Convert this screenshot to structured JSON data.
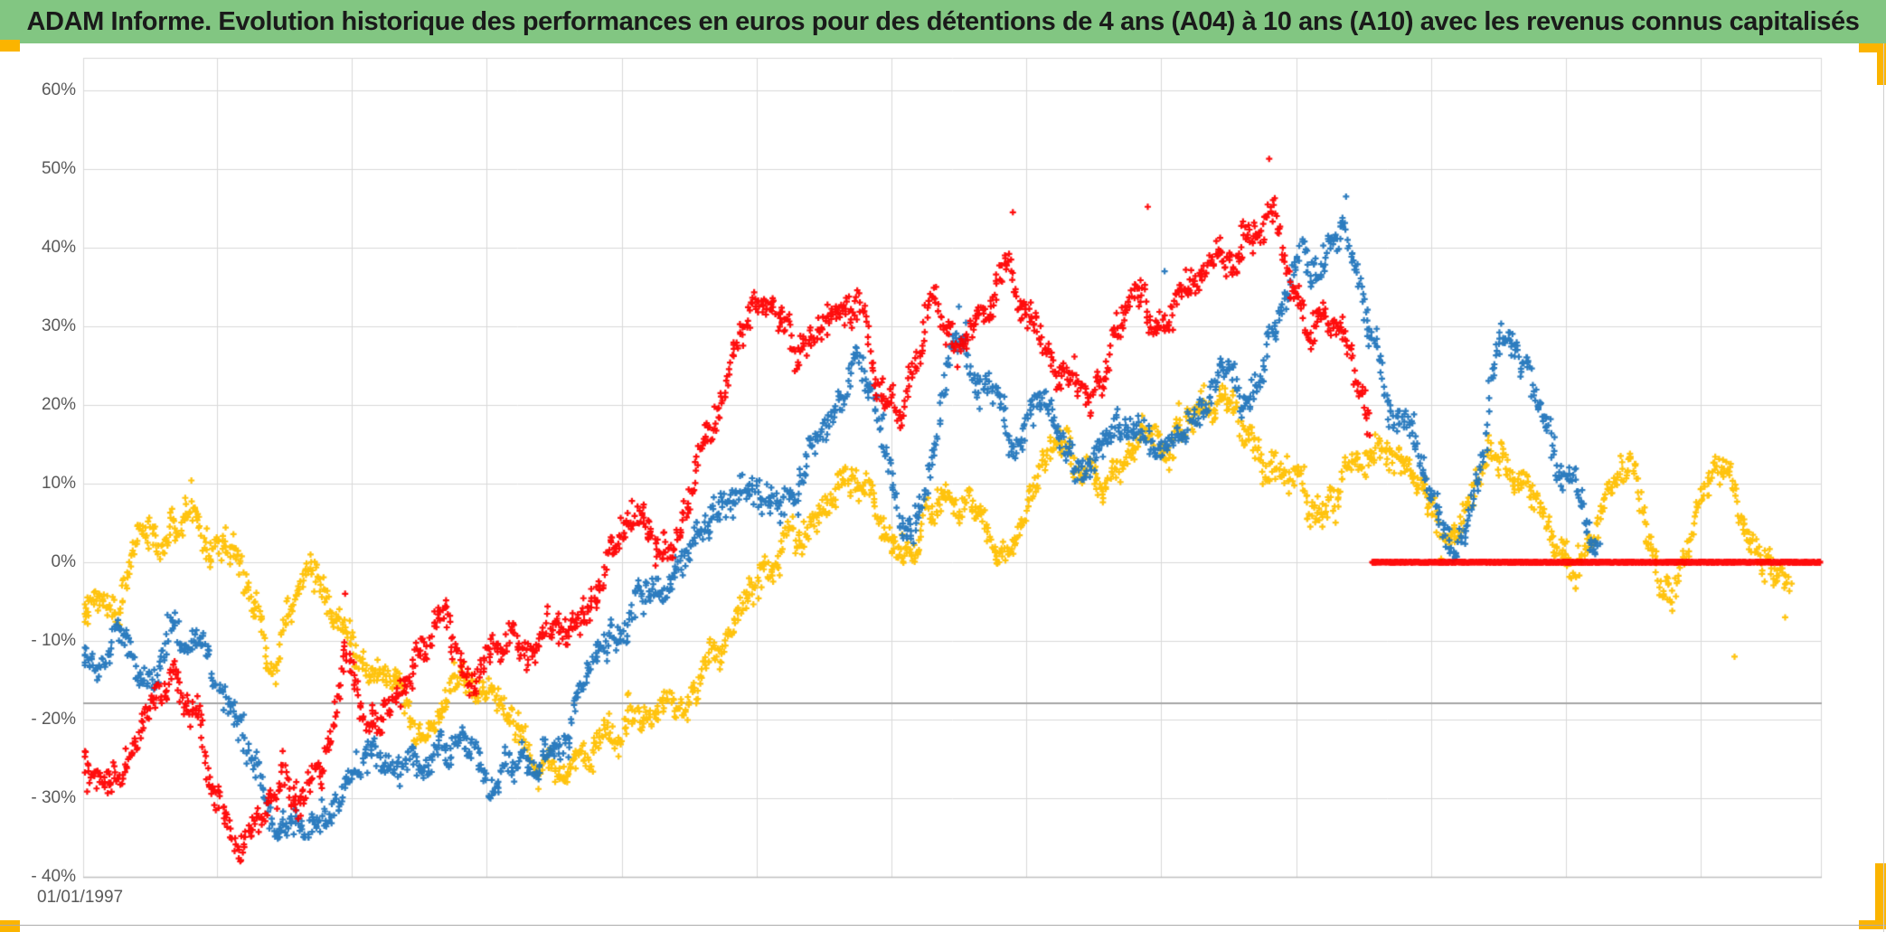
{
  "header": {
    "title": "ADAM Informe. Evolution historique des performances en euros pour des détentions de 4 ans (A04) à 10 ans (A10) avec les revenus connus capitalisés"
  },
  "colors": {
    "title_bar_bg": "#82C682",
    "title_text": "#1A1A1A",
    "accent_yellow": "#FBB400",
    "gridline": "#D9D9D9",
    "axis_line": "#BFBFBF",
    "reference_line": "#A6A6A6",
    "tick_text": "#595959"
  },
  "chart_data": {
    "type": "scatter",
    "title": "ADAM Informe. Evolution historique des performances en euros pour des détentions de 4 ans (A04) à 10 ans (A10) avec les revenus connus capitalisés",
    "marker": "plus",
    "grid": true,
    "legend": "none",
    "x_axis": {
      "start_label": "01/01/1997",
      "start_year": 1997,
      "end_year": 2022.78,
      "gridline_every_years": 2
    },
    "y_axis": {
      "unit": "%",
      "min": -40,
      "max": 60,
      "tick_step": 10,
      "tick_labels": [
        "60%",
        "50%",
        "40%",
        "30%",
        "20%",
        "10%",
        "0%",
        "- 10%",
        "- 20%",
        "- 30%",
        "- 40%"
      ]
    },
    "reference_line_pct": -17.9,
    "series": [
      {
        "name": "yellow",
        "color": "#FFC000",
        "points_per_year": 80,
        "jitter_pct": 1.4,
        "walk": 1.0,
        "path": [
          [
            1997.0,
            -6
          ],
          [
            1997.2,
            -3
          ],
          [
            1997.45,
            -5
          ],
          [
            1997.7,
            -2
          ],
          [
            1997.9,
            1
          ],
          [
            1998.1,
            3
          ],
          [
            1998.35,
            6
          ],
          [
            1998.6,
            9
          ],
          [
            1998.85,
            6
          ],
          [
            1999.1,
            3
          ],
          [
            1999.35,
            -2
          ],
          [
            1999.6,
            -7
          ],
          [
            1999.85,
            -12
          ],
          [
            2000.1,
            -7
          ],
          [
            2000.35,
            -2
          ],
          [
            2000.6,
            -5
          ],
          [
            2000.85,
            -9
          ],
          [
            2001.1,
            -12
          ],
          [
            2001.35,
            -15
          ],
          [
            2001.6,
            -17
          ],
          [
            2001.85,
            -19
          ],
          [
            2002.1,
            -21
          ],
          [
            2002.35,
            -18
          ],
          [
            2002.6,
            -16
          ],
          [
            2002.85,
            -18
          ],
          [
            2003.1,
            -20
          ],
          [
            2003.35,
            -23
          ],
          [
            2003.6,
            -25
          ],
          [
            2003.85,
            -27
          ],
          [
            2004.1,
            -28
          ],
          [
            2004.35,
            -26
          ],
          [
            2004.6,
            -23
          ],
          [
            2004.85,
            -20
          ],
          [
            2005.1,
            -17
          ],
          [
            2005.35,
            -14
          ],
          [
            2005.6,
            -16
          ],
          [
            2005.85,
            -13
          ],
          [
            2006.1,
            -10
          ],
          [
            2006.35,
            -7
          ],
          [
            2006.6,
            -4
          ],
          [
            2006.85,
            -2
          ],
          [
            2007.1,
            2
          ],
          [
            2007.35,
            5
          ],
          [
            2007.6,
            3
          ],
          [
            2007.85,
            6
          ],
          [
            2008.1,
            9
          ],
          [
            2008.35,
            12
          ],
          [
            2008.6,
            10
          ],
          [
            2008.85,
            6
          ],
          [
            2009.1,
            2
          ],
          [
            2009.35,
            -1
          ],
          [
            2009.6,
            3
          ],
          [
            2009.85,
            7
          ],
          [
            2010.1,
            9
          ],
          [
            2010.35,
            6
          ],
          [
            2010.6,
            3
          ],
          [
            2010.85,
            5
          ],
          [
            2011.1,
            8
          ],
          [
            2011.35,
            11
          ],
          [
            2011.6,
            13
          ],
          [
            2011.85,
            10
          ],
          [
            2012.1,
            8
          ],
          [
            2012.35,
            11
          ],
          [
            2012.6,
            13
          ],
          [
            2012.85,
            15
          ],
          [
            2013.1,
            13
          ],
          [
            2013.35,
            16
          ],
          [
            2013.6,
            18
          ],
          [
            2013.85,
            20
          ],
          [
            2014.1,
            19
          ],
          [
            2014.35,
            17
          ],
          [
            2014.6,
            15
          ],
          [
            2014.85,
            13
          ],
          [
            2015.1,
            11
          ],
          [
            2015.35,
            9
          ],
          [
            2015.6,
            11
          ],
          [
            2015.85,
            14
          ],
          [
            2016.1,
            17
          ],
          [
            2016.35,
            15
          ],
          [
            2016.6,
            12
          ],
          [
            2016.85,
            8
          ],
          [
            2017.1,
            4
          ],
          [
            2017.35,
            1
          ],
          [
            2017.6,
            4
          ],
          [
            2017.85,
            9
          ],
          [
            2018.1,
            13
          ],
          [
            2018.35,
            10
          ],
          [
            2018.6,
            6
          ],
          [
            2018.85,
            2
          ],
          [
            2019.1,
            -1
          ],
          [
            2019.35,
            3
          ],
          [
            2019.6,
            9
          ],
          [
            2019.85,
            14
          ],
          [
            2020.1,
            8
          ],
          [
            2020.35,
            0
          ],
          [
            2020.6,
            -4
          ],
          [
            2020.85,
            3
          ],
          [
            2021.1,
            11
          ],
          [
            2021.35,
            13
          ],
          [
            2021.6,
            6
          ],
          [
            2021.85,
            1
          ],
          [
            2022.1,
            -1
          ],
          [
            2022.33,
            -3
          ]
        ],
        "outliers": [
          [
            1998.62,
            10.4
          ],
          [
            2021.5,
            -12
          ],
          [
            2022.25,
            -7
          ]
        ]
      },
      {
        "name": "blue",
        "color": "#2175BC",
        "points_per_year": 80,
        "jitter_pct": 1.4,
        "walk": 1.0,
        "path": [
          [
            1997.0,
            -12
          ],
          [
            1997.3,
            -15
          ],
          [
            1997.6,
            -13
          ],
          [
            1998.0,
            -12
          ],
          [
            1998.45,
            -9
          ],
          [
            1998.7,
            -11
          ],
          [
            1998.95,
            -16
          ],
          [
            1999.2,
            -21
          ],
          [
            1999.5,
            -26
          ],
          [
            1999.8,
            -30
          ],
          [
            2000.1,
            -32
          ],
          [
            2000.4,
            -33
          ],
          [
            2000.7,
            -29
          ],
          [
            2001.0,
            -25
          ],
          [
            2001.3,
            -24
          ],
          [
            2001.6,
            -27
          ],
          [
            2001.9,
            -28
          ],
          [
            2002.2,
            -24
          ],
          [
            2002.5,
            -21
          ],
          [
            2002.8,
            -24
          ],
          [
            2003.1,
            -29
          ],
          [
            2003.4,
            -30
          ],
          [
            2003.7,
            -25
          ],
          [
            2004.0,
            -21
          ],
          [
            2004.3,
            -17
          ],
          [
            2004.6,
            -13
          ],
          [
            2004.9,
            -9
          ],
          [
            2005.2,
            -5
          ],
          [
            2005.5,
            -8
          ],
          [
            2005.8,
            -4
          ],
          [
            2006.1,
            -1
          ],
          [
            2006.4,
            2
          ],
          [
            2006.7,
            5
          ],
          [
            2007.0,
            9
          ],
          [
            2007.3,
            12
          ],
          [
            2007.6,
            10
          ],
          [
            2007.9,
            16
          ],
          [
            2008.2,
            20
          ],
          [
            2008.5,
            24
          ],
          [
            2008.8,
            15
          ],
          [
            2009.1,
            5
          ],
          [
            2009.3,
            0
          ],
          [
            2009.5,
            8
          ],
          [
            2009.7,
            18
          ],
          [
            2009.9,
            26
          ],
          [
            2010.1,
            29
          ],
          [
            2010.4,
            22
          ],
          [
            2010.7,
            17
          ],
          [
            2011.0,
            14
          ],
          [
            2011.3,
            20
          ],
          [
            2011.6,
            16
          ],
          [
            2011.9,
            11
          ],
          [
            2012.2,
            14
          ],
          [
            2012.5,
            17
          ],
          [
            2012.8,
            14
          ],
          [
            2013.1,
            16
          ],
          [
            2013.4,
            19
          ],
          [
            2013.7,
            23
          ],
          [
            2014.0,
            26
          ],
          [
            2014.3,
            24
          ],
          [
            2014.6,
            28
          ],
          [
            2014.9,
            32
          ],
          [
            2015.2,
            36
          ],
          [
            2015.5,
            42
          ],
          [
            2015.7,
            44
          ],
          [
            2015.9,
            38
          ],
          [
            2016.1,
            30
          ],
          [
            2016.4,
            22
          ],
          [
            2016.7,
            16
          ],
          [
            2017.0,
            10
          ],
          [
            2017.3,
            5
          ],
          [
            2017.5,
            8
          ],
          [
            2017.8,
            20
          ],
          [
            2018.0,
            30
          ],
          [
            2018.2,
            31
          ],
          [
            2018.5,
            24
          ],
          [
            2018.8,
            16
          ],
          [
            2019.1,
            9
          ],
          [
            2019.35,
            3
          ],
          [
            2019.5,
            1
          ]
        ],
        "outliers": [
          [
            2015.74,
            46.5
          ],
          [
            2013.05,
            37
          ],
          [
            2010.0,
            32.5
          ]
        ]
      },
      {
        "name": "red",
        "color": "#FF0000",
        "points_per_year": 80,
        "jitter_pct": 1.5,
        "walk": 1.0,
        "path": [
          [
            1997.0,
            -27
          ],
          [
            1997.3,
            -30
          ],
          [
            1997.6,
            -28
          ],
          [
            1997.9,
            -24
          ],
          [
            1998.1,
            -20
          ],
          [
            1998.35,
            -15
          ],
          [
            1998.6,
            -19
          ],
          [
            1998.9,
            -26
          ],
          [
            1999.2,
            -30
          ],
          [
            1999.45,
            -32
          ],
          [
            1999.7,
            -28
          ],
          [
            2000.0,
            -25
          ],
          [
            2000.3,
            -28
          ],
          [
            2000.6,
            -22
          ],
          [
            2000.9,
            -10
          ],
          [
            2001.1,
            -15
          ],
          [
            2001.4,
            -20
          ],
          [
            2001.7,
            -16
          ],
          [
            2002.0,
            -11
          ],
          [
            2002.2,
            -5
          ],
          [
            2002.45,
            -9
          ],
          [
            2002.7,
            -15
          ],
          [
            2002.9,
            -18
          ],
          [
            2003.1,
            -14
          ],
          [
            2003.35,
            -11
          ],
          [
            2003.6,
            -14
          ],
          [
            2003.9,
            -11
          ],
          [
            2004.1,
            -8
          ],
          [
            2004.4,
            -6
          ],
          [
            2004.7,
            -2
          ],
          [
            2005.0,
            1
          ],
          [
            2005.3,
            3
          ],
          [
            2005.6,
            1
          ],
          [
            2005.9,
            5
          ],
          [
            2006.2,
            12
          ],
          [
            2006.5,
            19
          ],
          [
            2006.8,
            26
          ],
          [
            2007.1,
            31
          ],
          [
            2007.35,
            27
          ],
          [
            2007.6,
            23
          ],
          [
            2007.9,
            29
          ],
          [
            2008.15,
            33
          ],
          [
            2008.4,
            30
          ],
          [
            2008.55,
            33
          ],
          [
            2008.8,
            24
          ],
          [
            2009.1,
            17
          ],
          [
            2009.3,
            22
          ],
          [
            2009.55,
            34
          ],
          [
            2009.8,
            31
          ],
          [
            2010.0,
            28
          ],
          [
            2010.2,
            31
          ],
          [
            2010.5,
            35
          ],
          [
            2010.8,
            38
          ],
          [
            2011.0,
            34
          ],
          [
            2011.2,
            30
          ],
          [
            2011.45,
            26
          ],
          [
            2011.7,
            28
          ],
          [
            2011.9,
            24
          ],
          [
            2012.1,
            26
          ],
          [
            2012.35,
            29
          ],
          [
            2012.6,
            33
          ],
          [
            2012.85,
            31
          ],
          [
            2013.1,
            27
          ],
          [
            2013.35,
            31
          ],
          [
            2013.6,
            36
          ],
          [
            2013.85,
            40
          ],
          [
            2014.1,
            38
          ],
          [
            2014.35,
            40
          ],
          [
            2014.6,
            43
          ],
          [
            2014.8,
            37
          ],
          [
            2015.0,
            33
          ],
          [
            2015.2,
            29
          ],
          [
            2015.45,
            31
          ],
          [
            2015.7,
            27
          ],
          [
            2015.9,
            22
          ],
          [
            2016.1,
            18
          ]
        ],
        "outliers": [
          [
            2010.8,
            44.5
          ],
          [
            2012.8,
            45.2
          ],
          [
            2014.6,
            51.3
          ],
          [
            2000.9,
            -4
          ]
        ],
        "flat_zero_from": 2016.13,
        "flat_zero_to": 2022.78
      }
    ]
  }
}
